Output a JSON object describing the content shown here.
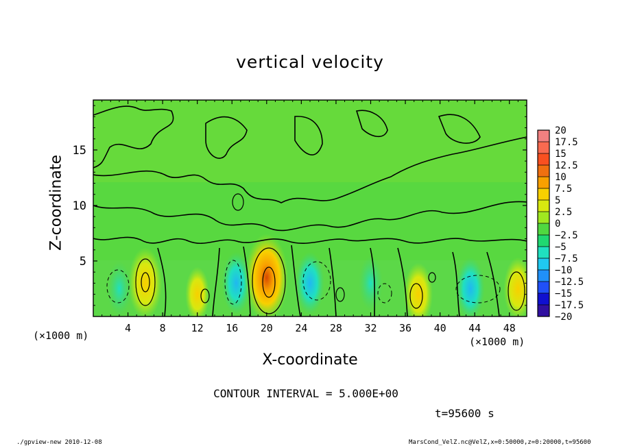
{
  "chart_data": {
    "type": "heatmap",
    "title": "vertical velocity",
    "xlabel": "X-coordinate",
    "ylabel": "Z-coordinate",
    "x_unit_left": "(×1000 m)",
    "x_unit_right": "(×1000 m)",
    "xlim": [
      0,
      50
    ],
    "ylim": [
      0,
      19.5
    ],
    "x_ticks": [
      4,
      8,
      12,
      16,
      20,
      24,
      28,
      32,
      36,
      40,
      44,
      48
    ],
    "y_ticks": [
      5,
      10,
      15
    ],
    "contour_interval_text": "CONTOUR INTERVAL = 5.000E+00",
    "time_text": "t=95600 s",
    "colorbar": {
      "labels": [
        "20",
        "17.5",
        "15",
        "12.5",
        "10",
        "7.5",
        "5",
        "2.5",
        "0",
        "−2.5",
        "−5",
        "−7.5",
        "−10",
        "−12.5",
        "−15",
        "−17.5",
        "−20"
      ],
      "colors": [
        "#f08080",
        "#f86a50",
        "#f85020",
        "#f07010",
        "#f8a000",
        "#f8d000",
        "#d8e810",
        "#a0e820",
        "#50d840",
        "#20d870",
        "#20e0c0",
        "#20c8f0",
        "#2090f8",
        "#2050f8",
        "#1010d0",
        "#3010a0",
        "#7020c0"
      ]
    },
    "cells": [
      {
        "x": 6,
        "z": 3,
        "w": 7.5
      },
      {
        "x": 12,
        "z": 2,
        "w": 2.5
      },
      {
        "x": 16.5,
        "z": 3,
        "w": -5
      },
      {
        "x": 20,
        "z": 3.5,
        "w": 12.5
      },
      {
        "x": 25,
        "z": 3,
        "w": -5
      },
      {
        "x": 32,
        "z": 3,
        "w": -2.5
      },
      {
        "x": 37.5,
        "z": 2,
        "w": 5
      },
      {
        "x": 43.5,
        "z": 2.5,
        "w": -5
      },
      {
        "x": 49,
        "z": 2.5,
        "w": 5
      },
      {
        "x": 3,
        "z": 2.5,
        "w": -2.5
      }
    ]
  },
  "footer": {
    "left": "./gpview-new  2010-12-08",
    "right": "MarsCond_VelZ.nc@VelZ,x=0:50000,z=0:20000,t=95600"
  }
}
